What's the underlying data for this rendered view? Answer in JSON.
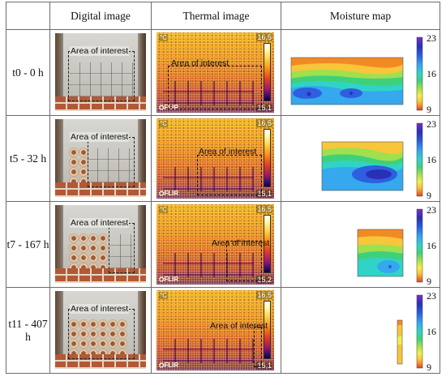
{
  "table": {
    "headers": {
      "digital": "Digital image",
      "thermal": "Thermal image",
      "moisture": "Moisture map"
    },
    "rows": [
      {
        "label": "t0 - 0 h",
        "digital_aoi": "Area of interest",
        "thermal": {
          "unit": "°C",
          "max": "16,5",
          "min": "15,1",
          "aoi": "Area of interest",
          "brand": "FLIR"
        },
        "moisture": {
          "scale_max": "23",
          "scale_mid": "16",
          "scale_min": "9"
        }
      },
      {
        "label": "t5 - 32 h",
        "digital_aoi": "Area of interest",
        "thermal": {
          "unit": "°C",
          "max": "16,5",
          "min": "15,1",
          "aoi": "Area of interest",
          "brand": "FLIR"
        },
        "moisture": {
          "scale_max": "23",
          "scale_mid": "16",
          "scale_min": "9"
        }
      },
      {
        "label": "t7 - 167 h",
        "digital_aoi": "Area of interest",
        "thermal": {
          "unit": "°C",
          "max": "16,5",
          "min": "15,2",
          "aoi": "Area of interest",
          "brand": "FLIR"
        },
        "moisture": {
          "scale_max": "23",
          "scale_mid": "16",
          "scale_min": "9"
        }
      },
      {
        "label": "t11 - 407 h",
        "digital_aoi": "Area of interest",
        "thermal": {
          "unit": "°C",
          "max": "16,5",
          "min": "15,1",
          "aoi": "Area of interest",
          "brand": "FLIR"
        },
        "moisture": {
          "scale_max": "23",
          "scale_mid": "16",
          "scale_min": "9"
        }
      }
    ]
  },
  "colors": {
    "border": "#6b6b6b",
    "moisture_palette": [
      "#e8392a",
      "#f28a24",
      "#f7c63a",
      "#f4ef4a",
      "#9fe04e",
      "#3fd07a",
      "#2fd4c6",
      "#35a8ee",
      "#2d5fe0",
      "#2a2fb8",
      "#7a2fc6",
      "#b62fc0"
    ]
  }
}
